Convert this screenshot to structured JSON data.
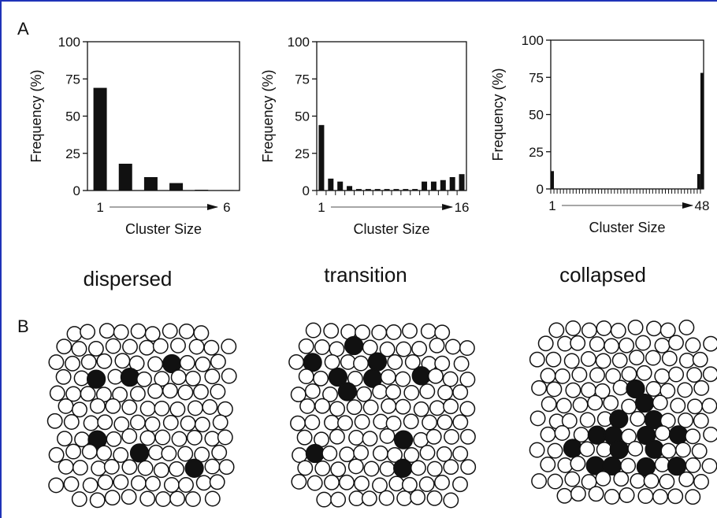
{
  "figure": {
    "panel_a_label": "A",
    "panel_b_label": "B",
    "states": [
      "dispersed",
      "transition",
      "collapsed"
    ],
    "colors": {
      "frame": "#1f33b8",
      "ink": "#111111",
      "arrow": "#888888"
    }
  },
  "chart_data": [
    {
      "type": "bar",
      "label": "dispersed",
      "xlabel": "Cluster Size",
      "ylabel": "Frequency (%)",
      "ylim": [
        0,
        100
      ],
      "yticks": [
        "0",
        "25",
        "50",
        "75",
        "100"
      ],
      "x_start_label": "1",
      "x_end_label": "6",
      "categories": [
        1,
        2,
        3,
        4,
        5,
        6
      ],
      "values": [
        69,
        18,
        9,
        5,
        0.5,
        0.3
      ],
      "grid": false
    },
    {
      "type": "bar",
      "label": "transition",
      "xlabel": "Cluster Size",
      "ylabel": "Frequency (%)",
      "ylim": [
        0,
        100
      ],
      "yticks": [
        "0",
        "25",
        "50",
        "75",
        "100"
      ],
      "x_start_label": "1",
      "x_end_label": "16",
      "categories": [
        1,
        2,
        3,
        4,
        5,
        6,
        7,
        8,
        9,
        10,
        11,
        12,
        13,
        14,
        15,
        16
      ],
      "values": [
        44,
        8,
        6,
        3,
        1,
        1,
        1,
        1,
        1,
        1,
        1,
        6,
        6,
        7,
        9,
        11
      ],
      "grid": false
    },
    {
      "type": "bar",
      "label": "collapsed",
      "xlabel": "Cluster Size",
      "ylabel": "Frequency (%)",
      "ylim": [
        0,
        100
      ],
      "yticks": [
        "0",
        "25",
        "50",
        "75",
        "100"
      ],
      "x_start_label": "1",
      "x_end_label": "48",
      "categories": [
        1,
        2,
        3,
        4,
        5,
        6,
        7,
        8,
        9,
        10,
        11,
        12,
        13,
        14,
        15,
        16,
        17,
        18,
        19,
        20,
        21,
        22,
        23,
        24,
        25,
        26,
        27,
        28,
        29,
        30,
        31,
        32,
        33,
        34,
        35,
        36,
        37,
        38,
        39,
        40,
        41,
        42,
        43,
        44,
        45,
        46,
        47,
        48
      ],
      "values": [
        12,
        0,
        0,
        0,
        0,
        0,
        0,
        0,
        0,
        0,
        0,
        0,
        0,
        0,
        0,
        0,
        0,
        0,
        0,
        0,
        0,
        0,
        0,
        0,
        0,
        0,
        0,
        0,
        0,
        0,
        0,
        0,
        0,
        0,
        0,
        0,
        0,
        0,
        0,
        0,
        0,
        0,
        0,
        0,
        0,
        0,
        10,
        78
      ],
      "grid": false
    }
  ]
}
